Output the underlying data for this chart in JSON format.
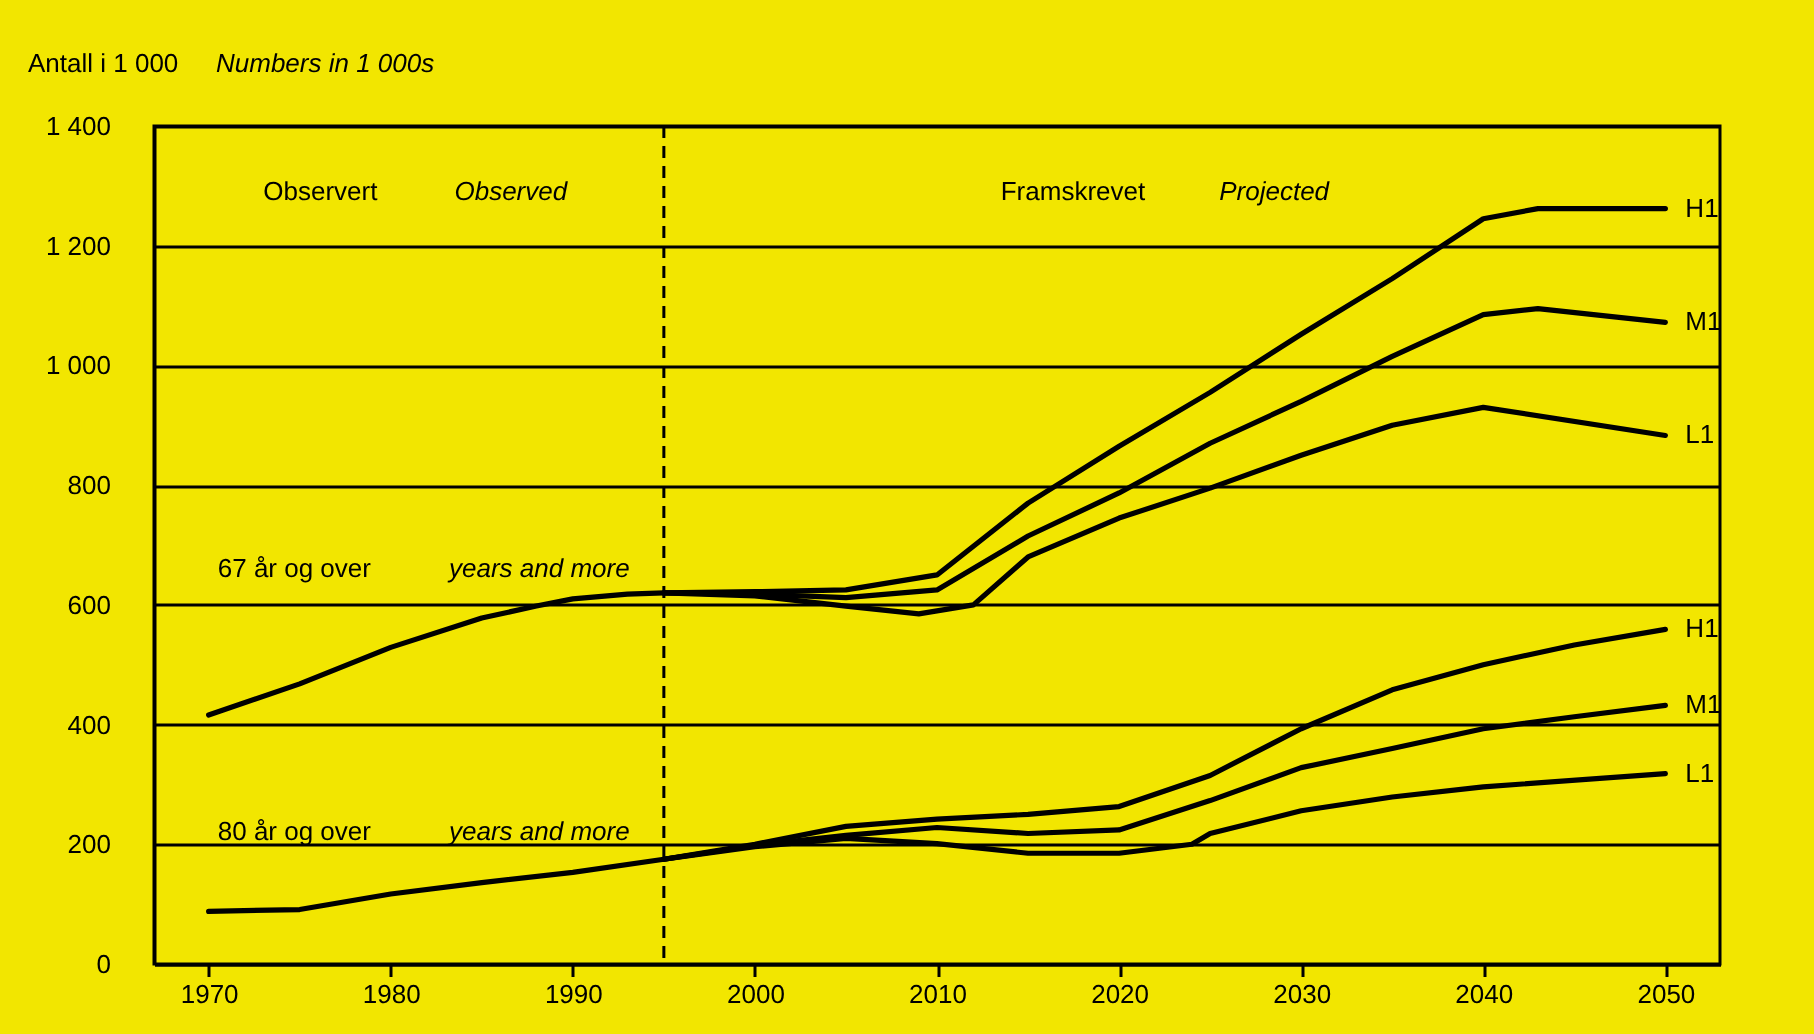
{
  "chart_data": {
    "type": "line",
    "title": "Antall i 1 000",
    "subtitle": "Numbers in 1 000s",
    "annotations": [
      "Observert",
      "Observed",
      "Framskrevet",
      "Projected",
      "67 år og over",
      "years and more",
      "80 år og over",
      "years and more"
    ],
    "series": [
      {
        "name": "H1",
        "color": "#000000",
        "x": [
          1970,
          1975,
          1980,
          1985,
          1988,
          1990,
          1993,
          1995,
          2000,
          2005,
          2010,
          2015,
          2020,
          2025,
          2030,
          2035,
          2040,
          2043,
          2050
        ],
        "values": [
          416,
          468,
          529,
          578,
          598,
          610,
          618,
          620,
          622,
          625,
          650,
          770,
          865,
          955,
          1052,
          1145,
          1245,
          1262,
          1262
        ]
      },
      {
        "name": "M1",
        "color": "#000000",
        "x": [
          1995,
          2000,
          2005,
          2010,
          2015,
          2020,
          2025,
          2030,
          2035,
          2040,
          2043,
          2050
        ],
        "values": [
          620,
          618,
          612,
          625,
          715,
          787,
          870,
          940,
          1015,
          1085,
          1095,
          1072
        ]
      },
      {
        "name": "L1",
        "color": "#000000",
        "x": [
          1995,
          2000,
          2005,
          2009,
          2012,
          2015,
          2020,
          2025,
          2030,
          2035,
          2040,
          2050
        ],
        "values": [
          620,
          615,
          598,
          585,
          600,
          680,
          745,
          795,
          850,
          900,
          930,
          883
        ]
      },
      {
        "name": "H1",
        "color": "#000000",
        "x": [
          1970,
          1975,
          1980,
          1985,
          1990,
          1995,
          2000,
          2005,
          2010,
          2015,
          2020,
          2025,
          2030,
          2035,
          2040,
          2045,
          2050
        ],
        "values": [
          88,
          91,
          117,
          136,
          153,
          175,
          200,
          230,
          242,
          250,
          263,
          315,
          393,
          458,
          500,
          533,
          559
        ]
      },
      {
        "name": "M1",
        "color": "#000000",
        "x": [
          1995,
          2000,
          2005,
          2010,
          2015,
          2020,
          2025,
          2030,
          2035,
          2040,
          2045,
          2050
        ],
        "values": [
          175,
          198,
          215,
          228,
          218,
          224,
          273,
          328,
          360,
          393,
          413,
          432
        ]
      },
      {
        "name": "L1",
        "color": "#000000",
        "x": [
          1995,
          2000,
          2005,
          2010,
          2015,
          2020,
          2024,
          2025,
          2030,
          2035,
          2040,
          2050
        ],
        "values": [
          175,
          196,
          210,
          201,
          185,
          185,
          200,
          218,
          256,
          279,
          296,
          318
        ]
      }
    ],
    "xlim": [
      1967,
      2053
    ],
    "xticks": [
      1970,
      1980,
      1990,
      2000,
      2010,
      2020,
      2030,
      2040,
      2050
    ],
    "ylim": [
      0,
      1400
    ],
    "yticks": [
      0,
      200,
      400,
      600,
      800,
      {
        "value": 1000,
        "label": "1 000"
      },
      {
        "value": 1200,
        "label": "1 200"
      },
      {
        "value": 1400,
        "label": "1 400"
      }
    ],
    "grid": "y",
    "line_style": "solid",
    "ref_lines": [
      {
        "axis": "x",
        "value": 1995,
        "color": "#000000",
        "line_style": "dashed"
      }
    ]
  }
}
